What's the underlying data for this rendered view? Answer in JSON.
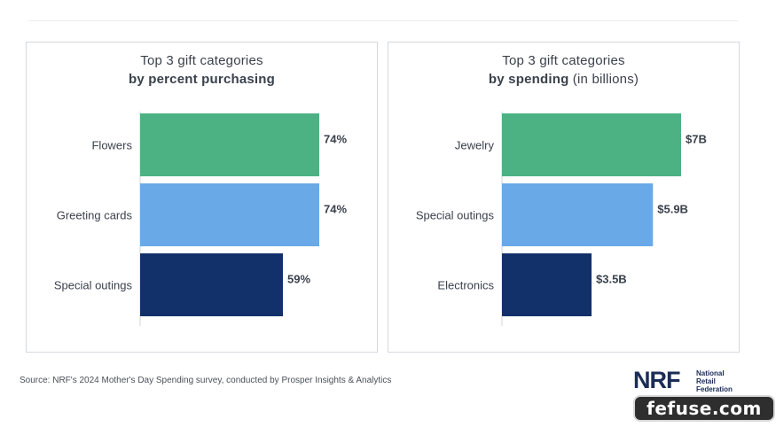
{
  "chart_data": [
    {
      "type": "bar",
      "orientation": "horizontal",
      "title_line1": "Top 3 gift categories",
      "title_line2_bold": "by percent purchasing",
      "title_line2_rest": "",
      "categories": [
        "Flowers",
        "Greeting cards",
        "Special outings"
      ],
      "values": [
        74,
        74,
        59
      ],
      "value_labels": [
        "74%",
        "74%",
        "59%"
      ],
      "colors": [
        "#4db283",
        "#69a9e8",
        "#12306a"
      ],
      "xlim": [
        0,
        74
      ]
    },
    {
      "type": "bar",
      "orientation": "horizontal",
      "title_line1": "Top 3 gift categories",
      "title_line2_bold": "by spending",
      "title_line2_rest": " (in billions)",
      "categories": [
        "Jewelry",
        "Special outings",
        "Electronics"
      ],
      "values": [
        7,
        5.9,
        3.5
      ],
      "value_labels": [
        "$7B",
        "$5.9B",
        "$3.5B"
      ],
      "colors": [
        "#4db283",
        "#69a9e8",
        "#12306a"
      ],
      "xlim": [
        0,
        7
      ]
    }
  ],
  "source": "Source: NRF's 2024 Mother's Day Spending survey, conducted by Prosper Insights & Analytics",
  "logo": {
    "mark": "NRF",
    "name_lines": [
      "National",
      "Retail",
      "Federation"
    ]
  },
  "watermark": "fefuse.com"
}
